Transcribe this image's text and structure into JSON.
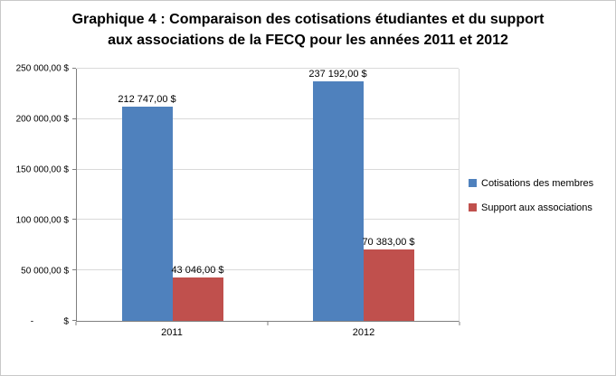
{
  "chart_data": {
    "type": "bar",
    "title": "Graphique 4 : Comparaison des cotisations étudiantes et du support aux associations de la FECQ pour les années 2011 et 2012",
    "categories": [
      "2011",
      "2012"
    ],
    "series": [
      {
        "name": "Cotisations des membres",
        "color": "#4F81BD",
        "values": [
          212747,
          237192
        ],
        "labels": [
          "212 747,00 $",
          "237 192,00 $"
        ]
      },
      {
        "name": "Support aux associations",
        "color": "#C0504D",
        "values": [
          43046,
          70383
        ],
        "labels": [
          "43 046,00 $",
          "70 383,00 $"
        ]
      }
    ],
    "ylim": [
      0,
      250000
    ],
    "ytick_step": 50000,
    "ytick_labels": [
      "-            $",
      "50 000,00 $",
      "100 000,00 $",
      "150 000,00 $",
      "200 000,00 $",
      "250 000,00 $"
    ],
    "xlabel": "",
    "ylabel": "",
    "grid": true,
    "legend_position": "right"
  }
}
